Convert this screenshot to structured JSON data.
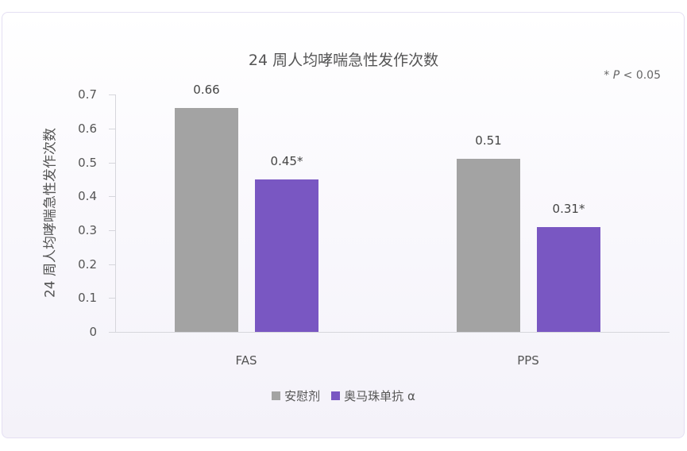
{
  "chart_data": {
    "type": "bar",
    "title": "24 周人均哮喘急性发作次数",
    "xlabel": "",
    "ylabel": "24 周人均哮喘急性发作次数",
    "ylim": [
      0,
      0.7
    ],
    "yticks": [
      "0",
      "0.1",
      "0.2",
      "0.3",
      "0.4",
      "0.5",
      "0.6",
      "0.7"
    ],
    "categories": [
      "FAS",
      "PPS"
    ],
    "series": [
      {
        "name": "安慰剂",
        "color": "#a3a3a3",
        "values": [
          0.66,
          0.51
        ],
        "labels": [
          "0.66",
          "0.51"
        ]
      },
      {
        "name": "奥马珠单抗 α",
        "color": "#7957c2",
        "values": [
          0.45,
          0.31
        ],
        "labels": [
          "0.45*",
          "0.31*"
        ]
      }
    ],
    "annotation": "* P < 0.05",
    "legend_position": "bottom",
    "grid": false
  },
  "note": {
    "star": "* ",
    "p": "P",
    "rest": " < 0.05"
  }
}
